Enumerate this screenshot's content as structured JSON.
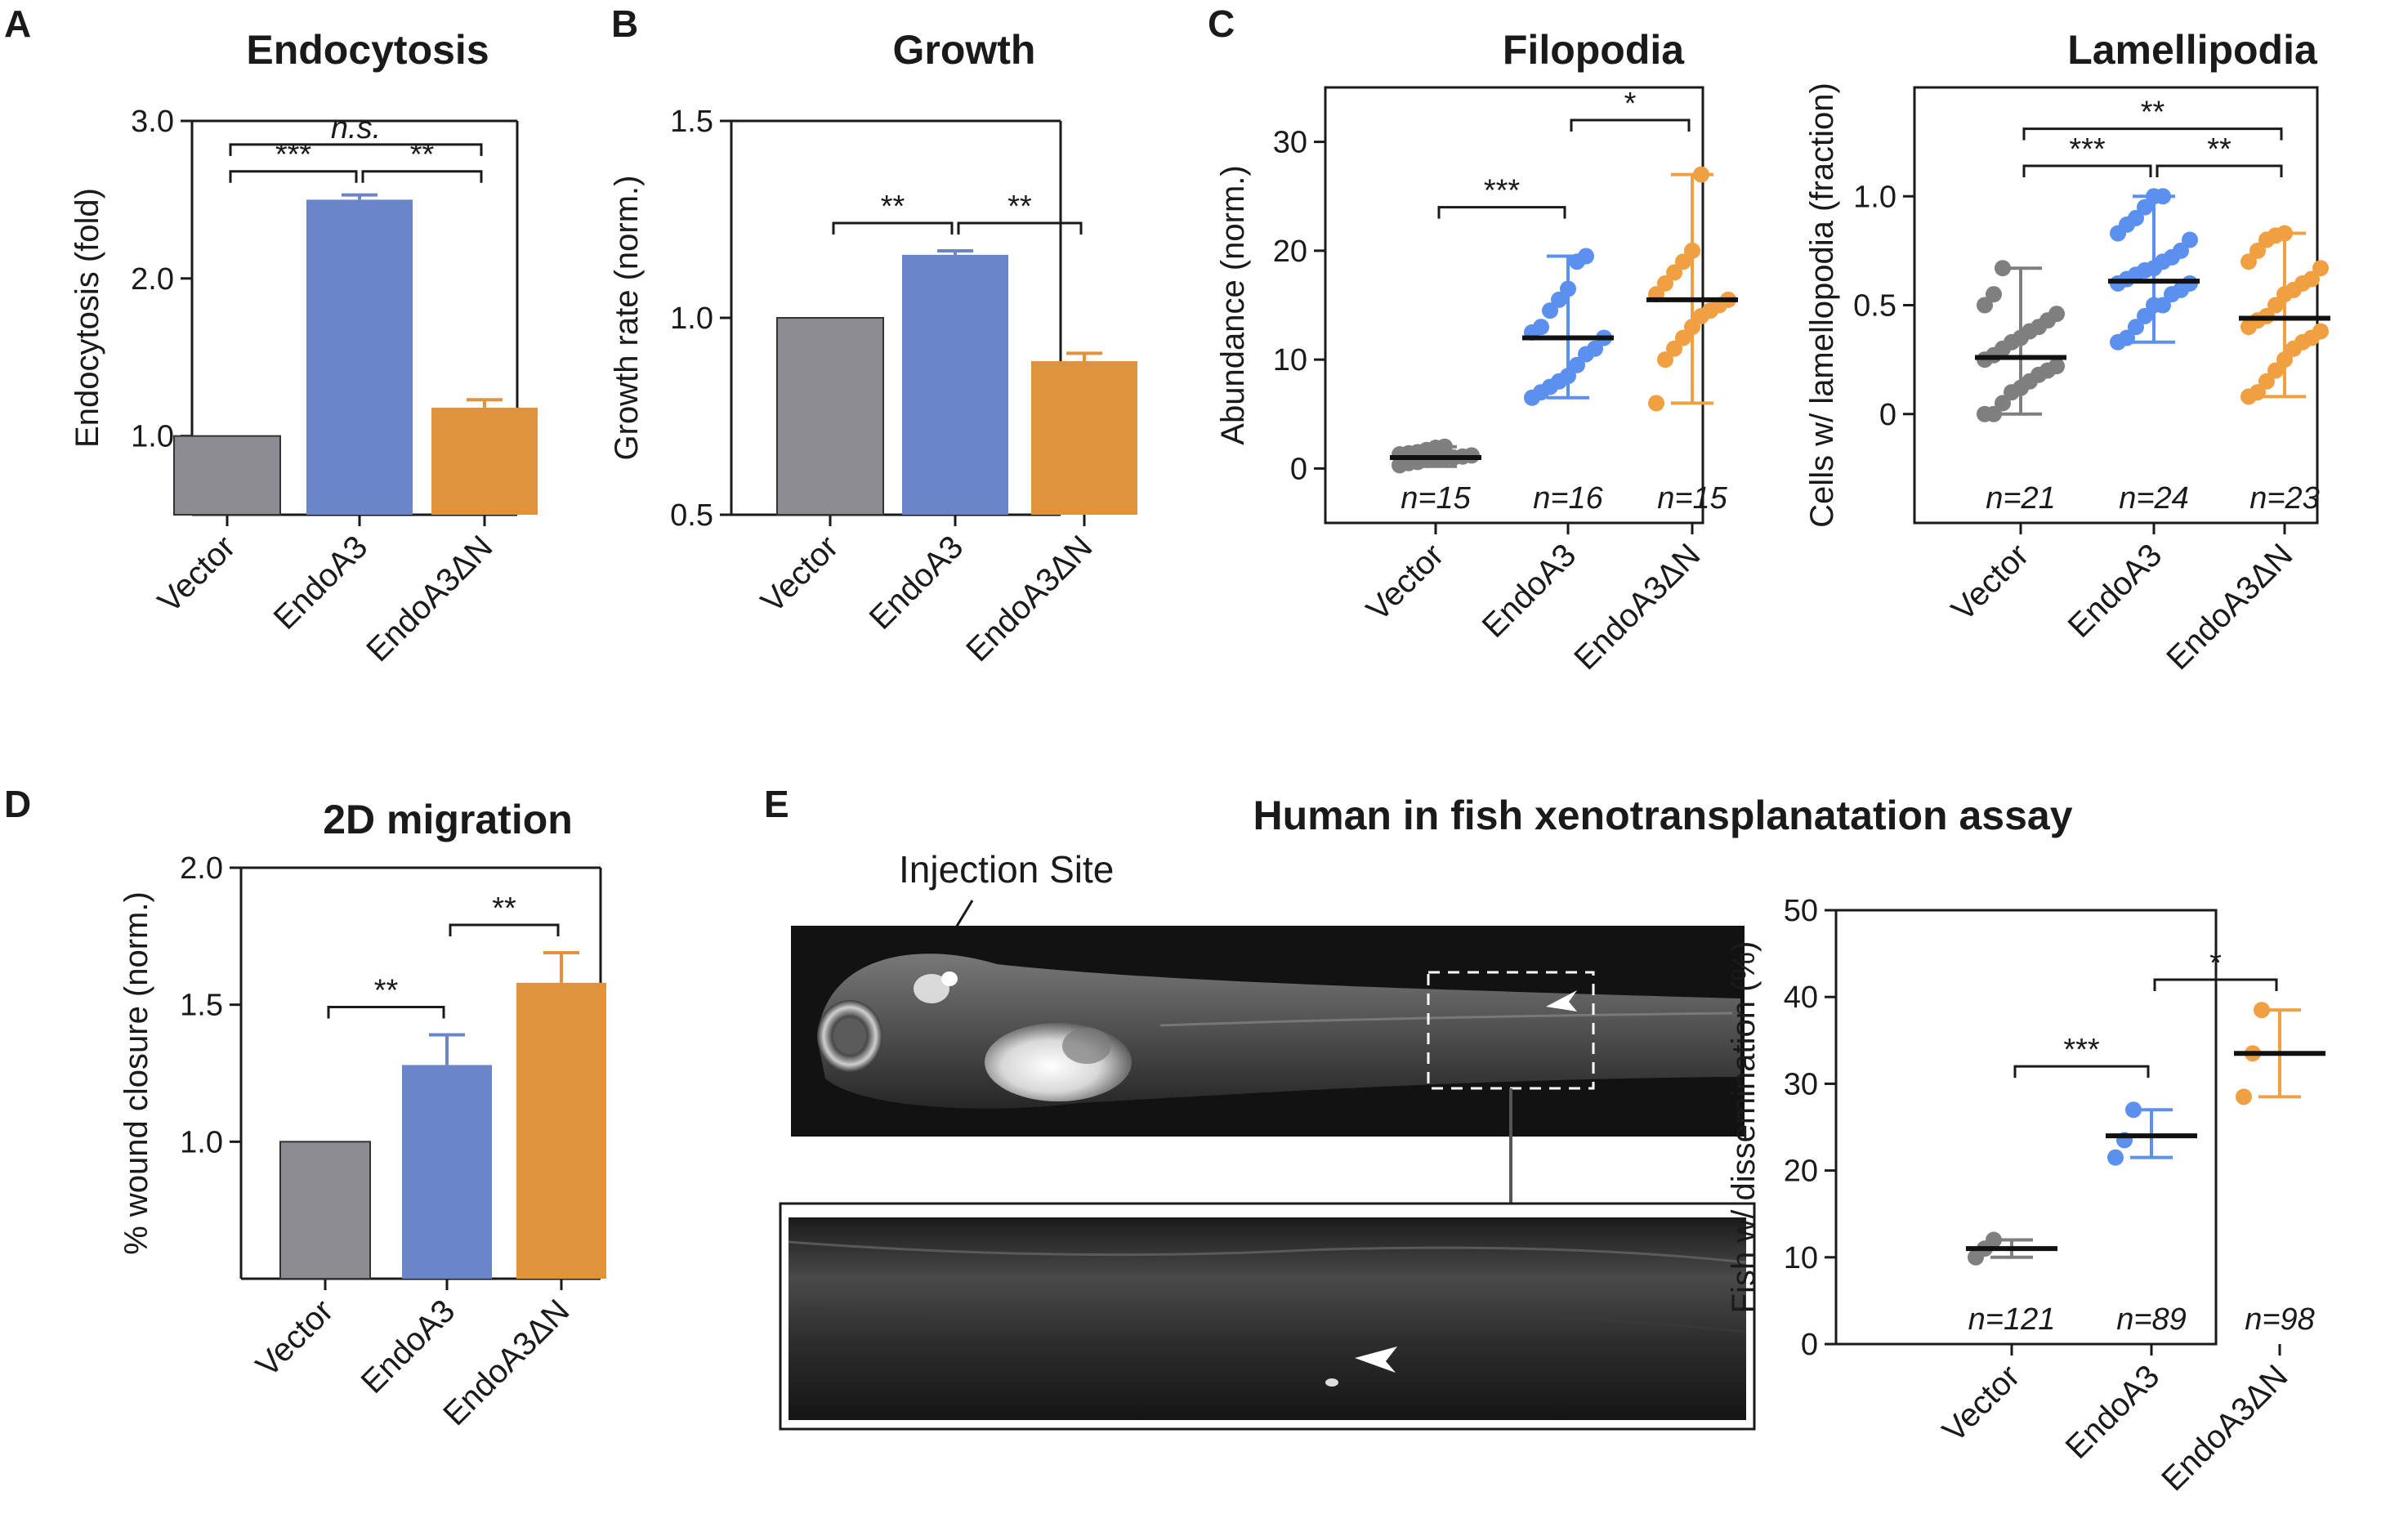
{
  "colors": {
    "vector": "#8c8c92",
    "endoa3": "#6a86c8",
    "endoa3dn": "#e0923c",
    "vector_dot": "#7f7f7f",
    "endoa3_dot": "#5b8ff0",
    "endoa3dn_dot": "#f0a040"
  },
  "panels": [
    {
      "letter": "A",
      "type": "bar",
      "title": "Endocytosis",
      "ylabel": "Endocytosis (fold)",
      "categories": [
        "Vector",
        "EndoA3",
        "EndoA3ΔN"
      ],
      "values": [
        1.0,
        2.5,
        1.18
      ],
      "errors": [
        0,
        0.03,
        0.05
      ],
      "ylim": [
        0.5,
        3.0
      ],
      "yticks": [
        1.0,
        2.0,
        3.0
      ],
      "yticklabels": [
        "1.0",
        "2.0",
        "3.0"
      ],
      "sig": [
        {
          "a": 0,
          "b": 2,
          "label": "n.s.",
          "italic": true,
          "level": 2
        },
        {
          "a": 0,
          "b": 1,
          "label": "***",
          "level": 1
        },
        {
          "a": 1,
          "b": 2,
          "label": "**",
          "level": 1
        }
      ]
    },
    {
      "letter": "B",
      "type": "bar",
      "title": "Growth",
      "ylabel": "Growth rate (norm.)",
      "categories": [
        "Vector",
        "EndoA3",
        "EndoA3ΔN"
      ],
      "values": [
        1.0,
        1.16,
        0.89
      ],
      "errors": [
        0,
        0.01,
        0.02
      ],
      "ylim": [
        0.5,
        1.5
      ],
      "yticks": [
        0.5,
        1.0,
        1.5
      ],
      "yticklabels": [
        "0.5",
        "1.0",
        "1.5"
      ],
      "sig": [
        {
          "a": 0,
          "b": 1,
          "label": "**",
          "level": 1
        },
        {
          "a": 1,
          "b": 2,
          "label": "**",
          "level": 2
        }
      ]
    },
    {
      "letter": "C",
      "type": "scatter",
      "title": "Filopodia",
      "ylabel": "Abundance (norm.)",
      "categories": [
        "Vector",
        "EndoA3",
        "EndoA3ΔN"
      ],
      "ns": [
        "n=15",
        "n=16",
        "n=15"
      ],
      "ylim": [
        -5,
        35
      ],
      "yticks": [
        0,
        10,
        20,
        30
      ],
      "yticklabels": [
        "0",
        "10",
        "20",
        "30"
      ],
      "means": [
        1.0,
        12.0,
        15.5
      ],
      "ranges": [
        [
          0.2,
          2.0
        ],
        [
          6.5,
          19.5
        ],
        [
          6.0,
          27.0
        ]
      ],
      "points": [
        [
          0.3,
          0.5,
          0.6,
          0.8,
          0.9,
          1.0,
          1.0,
          1.1,
          1.2,
          1.3,
          1.4,
          1.5,
          1.7,
          1.9,
          2.0
        ],
        [
          6.5,
          7.0,
          7.5,
          8.0,
          8.5,
          9.5,
          10.5,
          11.0,
          12.0,
          12.5,
          13.0,
          14.5,
          15.5,
          16.5,
          19.0,
          19.5
        ],
        [
          6.0,
          10.0,
          11.0,
          12.0,
          13.0,
          14.0,
          14.5,
          15.0,
          15.5,
          16.0,
          17.0,
          18.0,
          19.0,
          20.0,
          27.0
        ]
      ],
      "sig": [
        {
          "a": 0,
          "b": 1,
          "label": "***",
          "y": 24
        },
        {
          "a": 1,
          "b": 2,
          "label": "*",
          "y": 32
        }
      ]
    },
    {
      "letter": "",
      "type": "scatter",
      "title": "Lamellipodia",
      "ylabel": "Cells w/ lamellopodia (fraction)",
      "categories": [
        "Vector",
        "EndoA3",
        "EndoA3ΔN"
      ],
      "ns": [
        "n=21",
        "n=24",
        "n=23"
      ],
      "ylim": [
        -0.5,
        1.5
      ],
      "yticks": [
        0,
        0.5,
        1.0
      ],
      "yticklabels": [
        "0",
        "0.5",
        "1.0"
      ],
      "means": [
        0.26,
        0.61,
        0.44
      ],
      "ranges": [
        [
          0.0,
          0.67
        ],
        [
          0.33,
          1.0
        ],
        [
          0.08,
          0.83
        ]
      ],
      "points": [
        [
          0.0,
          0.0,
          0.05,
          0.1,
          0.12,
          0.15,
          0.18,
          0.2,
          0.22,
          0.25,
          0.27,
          0.3,
          0.33,
          0.35,
          0.38,
          0.4,
          0.43,
          0.46,
          0.5,
          0.55,
          0.67
        ],
        [
          0.33,
          0.35,
          0.4,
          0.45,
          0.5,
          0.5,
          0.55,
          0.57,
          0.6,
          0.6,
          0.62,
          0.64,
          0.66,
          0.67,
          0.7,
          0.72,
          0.75,
          0.8,
          0.83,
          0.87,
          0.9,
          0.95,
          1.0,
          1.0
        ],
        [
          0.08,
          0.1,
          0.15,
          0.2,
          0.25,
          0.3,
          0.33,
          0.35,
          0.38,
          0.4,
          0.43,
          0.45,
          0.5,
          0.55,
          0.57,
          0.6,
          0.62,
          0.67,
          0.7,
          0.75,
          0.8,
          0.82,
          0.83
        ]
      ],
      "sig": [
        {
          "a": 0,
          "b": 2,
          "label": "**",
          "y": 1.31
        },
        {
          "a": 0,
          "b": 1,
          "label": "***",
          "y": 1.14
        },
        {
          "a": 1,
          "b": 2,
          "label": "**",
          "y": 1.14
        }
      ]
    },
    {
      "letter": "D",
      "type": "bar",
      "title": "2D migration",
      "ylabel": "% wound closure (norm.)",
      "categories": [
        "Vector",
        "EndoA3",
        "EndoA3ΔN"
      ],
      "values": [
        1.0,
        1.28,
        1.58
      ],
      "errors": [
        0,
        0.11,
        0.11
      ],
      "ylim": [
        0.5,
        2.0
      ],
      "yticks": [
        1.0,
        1.5,
        2.0
      ],
      "yticklabels": [
        "1.0",
        "1.5",
        "2.0"
      ],
      "sig": [
        {
          "a": 0,
          "b": 1,
          "label": "**",
          "level": 1
        },
        {
          "a": 1,
          "b": 2,
          "label": "**",
          "level": 2
        }
      ]
    },
    {
      "letter": "",
      "type": "scatter",
      "title": "",
      "ylabel": "Fish w/ dissemination (%)",
      "categories": [
        "Vector",
        "EndoA3",
        "EndoA3ΔN"
      ],
      "ns": [
        "n=121",
        "n=89",
        "n=98"
      ],
      "ylim": [
        0,
        50
      ],
      "yticks": [
        0,
        10,
        20,
        30,
        40,
        50
      ],
      "yticklabels": [
        "0",
        "10",
        "20",
        "30",
        "40",
        "50"
      ],
      "means": [
        11.0,
        24.0,
        33.5
      ],
      "ranges": [
        [
          10.0,
          12.0
        ],
        [
          21.5,
          27.0
        ],
        [
          28.5,
          38.5
        ]
      ],
      "points": [
        [
          10.0,
          11.0,
          12.0
        ],
        [
          21.5,
          23.5,
          27.0
        ],
        [
          28.5,
          33.5,
          38.5
        ]
      ],
      "sig": [
        {
          "a": 0,
          "b": 1,
          "label": "***",
          "y": 32
        },
        {
          "a": 1,
          "b": 2,
          "label": "*",
          "y": 42
        }
      ]
    }
  ],
  "panel_e": {
    "letter": "E",
    "title": "Human in fish xenotransplanatation assay",
    "annotation": "Injection Site"
  }
}
